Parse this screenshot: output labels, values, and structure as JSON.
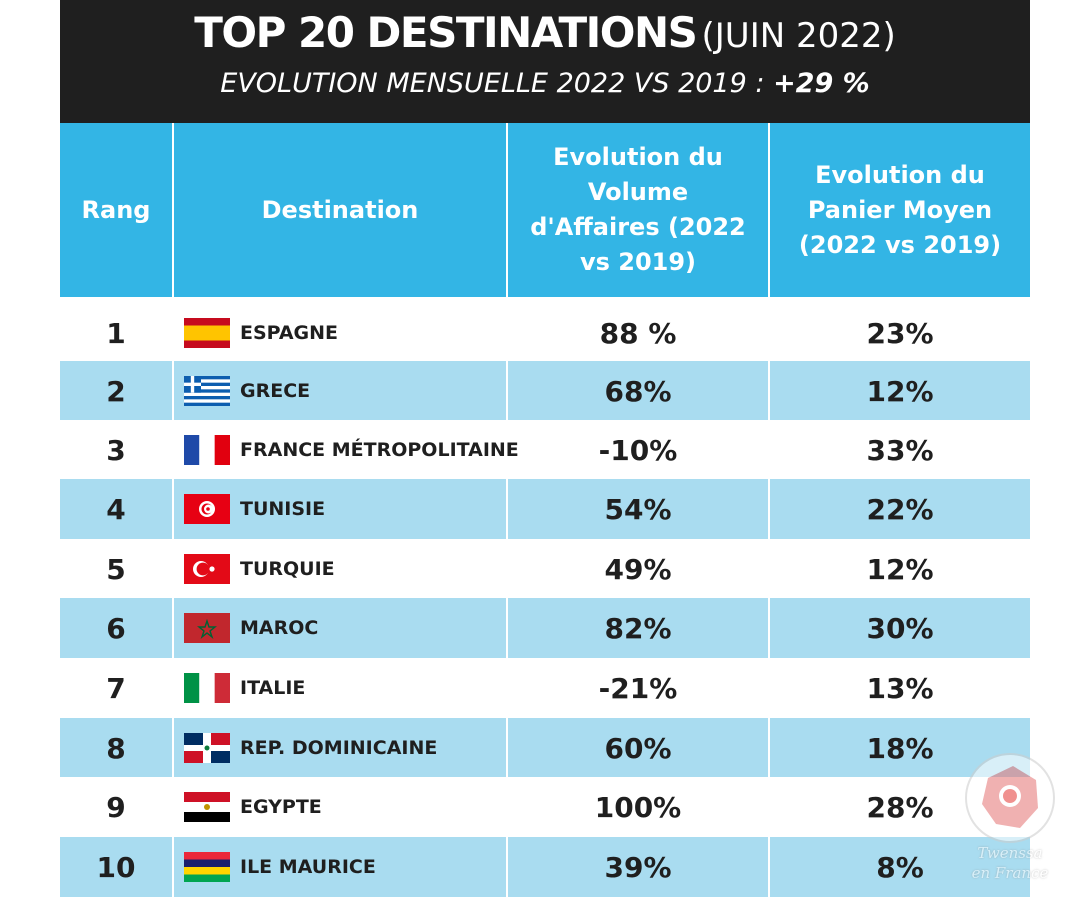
{
  "header": {
    "title_main": "TOP 20 DESTINATIONS",
    "title_sub": "(JUIN 2022)",
    "subtitle_text": "EVOLUTION MENSUELLE 2022 VS 2019 :",
    "subtitle_value": "+29 %"
  },
  "colors": {
    "header_bg": "#1f1f1f",
    "table_header_bg": "#33b5e5",
    "alt_row_bg": "#a9dcf0"
  },
  "chart_data": {
    "type": "table",
    "columns": [
      {
        "label": "Rang"
      },
      {
        "label": "Destination"
      },
      {
        "label": "Evolution du Volume d'Affaires (2022 vs 2019)"
      },
      {
        "label": "Evolution du Panier Moyen (2022 vs 2019)"
      }
    ],
    "rows": [
      {
        "rank": "1",
        "flag": "spain-flag",
        "destination": "ESPAGNE",
        "volume": "88 %",
        "panier": "23%"
      },
      {
        "rank": "2",
        "flag": "greece-flag",
        "destination": "GRECE",
        "volume": "68%",
        "panier": "12%"
      },
      {
        "rank": "3",
        "flag": "france-flag",
        "destination": "FRANCE MÉTROPOLITAINE",
        "volume": "-10%",
        "panier": "33%"
      },
      {
        "rank": "4",
        "flag": "tunisia-flag",
        "destination": "TUNISIE",
        "volume": "54%",
        "panier": "22%"
      },
      {
        "rank": "5",
        "flag": "turkey-flag",
        "destination": "TURQUIE",
        "volume": "49%",
        "panier": "12%"
      },
      {
        "rank": "6",
        "flag": "morocco-flag",
        "destination": "MAROC",
        "volume": "82%",
        "panier": "30%"
      },
      {
        "rank": "7",
        "flag": "italy-flag",
        "destination": "ITALIE",
        "volume": "-21%",
        "panier": "13%"
      },
      {
        "rank": "8",
        "flag": "dominican-republic-flag",
        "destination": "REP. DOMINICAINE",
        "volume": "60%",
        "panier": "18%"
      },
      {
        "rank": "9",
        "flag": "egypt-flag",
        "destination": "EGYPTE",
        "volume": "100%",
        "panier": "28%"
      },
      {
        "rank": "10",
        "flag": "mauritius-flag",
        "destination": "ILE MAURICE",
        "volume": "39%",
        "panier": "8%"
      }
    ]
  },
  "watermark": {
    "line1": "Twenssa",
    "line2": "en France"
  }
}
